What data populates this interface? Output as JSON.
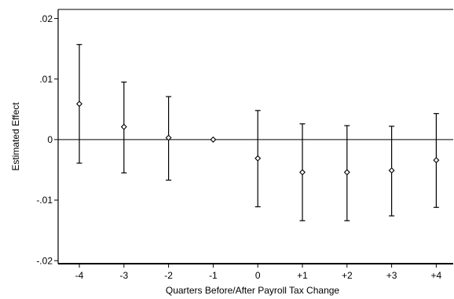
{
  "chart_data": {
    "type": "scatter",
    "title": "",
    "xlabel": "Quarters Before/After Payroll Tax Change",
    "ylabel": "Estimated Effect",
    "categories": [
      "-4",
      "-3",
      "-2",
      "-1",
      "0",
      "+1",
      "+2",
      "+3",
      "+4"
    ],
    "values": [
      0.0059,
      0.0021,
      0.0003,
      0.0,
      -0.0031,
      -0.0054,
      -0.0054,
      -0.0051,
      -0.0034
    ],
    "ci_lower": [
      -0.0039,
      -0.0055,
      -0.0067,
      0.0,
      -0.0111,
      -0.0134,
      -0.0134,
      -0.0126,
      -0.0112
    ],
    "ci_upper": [
      0.0157,
      0.0095,
      0.0071,
      0.0,
      0.0048,
      0.0026,
      0.0023,
      0.0022,
      0.0043
    ],
    "ylim": [
      -0.0205,
      0.0215
    ],
    "yticks": [
      0.02,
      0.01,
      0.0,
      -0.01,
      -0.02
    ],
    "ytick_labels": [
      ".02",
      ".01",
      "0",
      "-.01",
      "-.02"
    ],
    "reference_line": 0,
    "grid": false,
    "marker": "hollow-diamond",
    "colors": {
      "marker": "#000000",
      "errorbar": "#000000",
      "axis": "#000000",
      "background": "#ffffff"
    }
  }
}
